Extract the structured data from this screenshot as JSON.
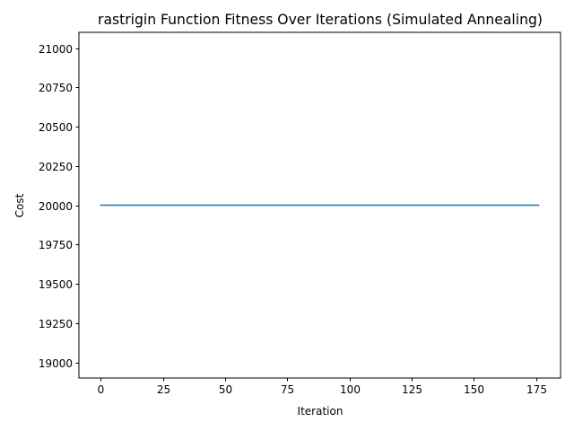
{
  "chart_data": {
    "type": "line",
    "title": "rastrigin Function Fitness Over Iterations (Simulated Annealing)",
    "xlabel": "Iteration",
    "ylabel": "Cost",
    "xlim": [
      -8.8,
      184.8
    ],
    "ylim": [
      18900,
      21100
    ],
    "xticks": [
      0,
      25,
      50,
      75,
      100,
      125,
      150,
      175
    ],
    "yticks": [
      19000,
      19250,
      19500,
      19750,
      20000,
      20250,
      20500,
      20750,
      21000
    ],
    "grid": false,
    "series": [
      {
        "color": "#1f77b4",
        "x": [
          0,
          176
        ],
        "y": [
          20000,
          20000
        ]
      }
    ]
  }
}
